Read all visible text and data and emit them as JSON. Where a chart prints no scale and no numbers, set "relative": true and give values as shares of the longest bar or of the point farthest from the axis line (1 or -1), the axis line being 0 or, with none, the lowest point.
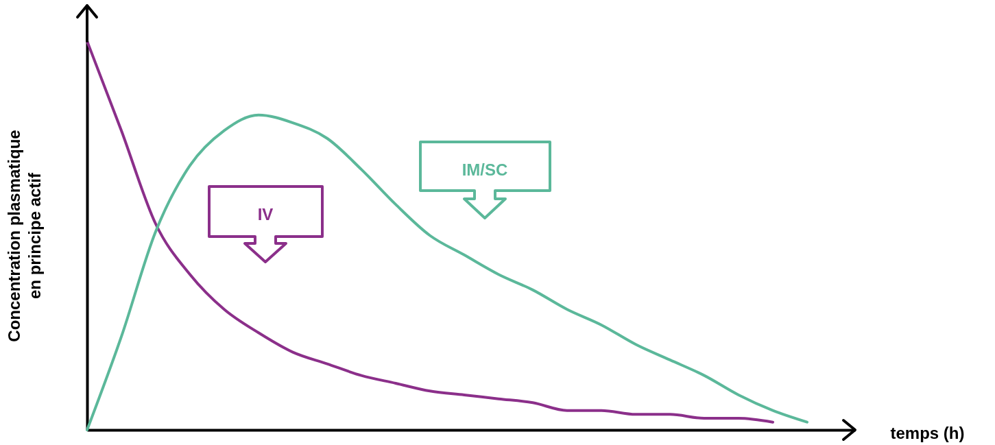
{
  "chart_data": {
    "type": "line",
    "relative": true,
    "xlabel": "temps (h)",
    "ylabel": "Concentration plasmatique en principe actif",
    "categories": [
      null,
      null,
      null,
      null,
      null,
      null,
      null,
      null,
      null,
      null,
      null,
      null,
      null,
      null,
      null,
      null,
      null,
      null,
      null,
      null,
      null,
      null
    ],
    "series": [
      {
        "name": "IV",
        "color": "#8b2f8a",
        "values": [
          1,
          0.77,
          0.53,
          0.4,
          0.31,
          0.25,
          0.2,
          0.17,
          0.14,
          0.12,
          0.1,
          0.09,
          0.08,
          0.07,
          0.05,
          0.05,
          0.04,
          0.04,
          0.03,
          0.03,
          0.02,
          null
        ]
      },
      {
        "name": "IM/SC",
        "color": "#5bb89a",
        "values": [
          0,
          0.24,
          0.51,
          0.68,
          0.77,
          0.81,
          0.79,
          0.75,
          0.67,
          0.58,
          0.5,
          0.45,
          0.4,
          0.36,
          0.31,
          0.27,
          0.22,
          0.18,
          0.14,
          0.09,
          0.05,
          0.02
        ]
      }
    ],
    "grid": false,
    "marker": "none",
    "line_style": "solid"
  }
}
